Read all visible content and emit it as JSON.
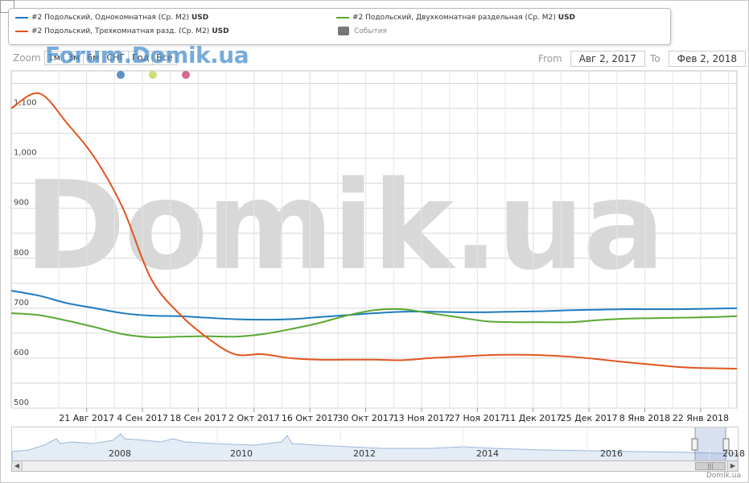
{
  "legend": {
    "items": [
      {
        "label": "#2 Подольский, Однокомнатная (Ср. М2)",
        "unit": "USD",
        "color": "#1f7bc1"
      },
      {
        "label": "#2 Подольский, Двухкомнатная раздельная (Ср. М2)",
        "unit": "USD",
        "color": "#59a832"
      },
      {
        "label": "#2 Подольский, Трехкомнатная разд. (Ср. М2)",
        "unit": "USD",
        "color": "#e0561f"
      }
    ],
    "events_label": "События"
  },
  "zoom": {
    "label": "Zoom",
    "buttons": [
      "1м",
      "3м",
      "6м",
      "СНГ",
      "Год",
      "Все"
    ]
  },
  "forum_watermark": "Forum.Domik.ua",
  "range": {
    "from_label": "From",
    "from_value": "Авг 2, 2017",
    "to_label": "To",
    "to_value": "Фев 2, 2018"
  },
  "event_dots": [
    {
      "color": "#5b8fc9"
    },
    {
      "color": "#cfe07a"
    },
    {
      "color": "#d36a8e"
    }
  ],
  "big_watermark": "Domik.ua",
  "chart_data": {
    "type": "line",
    "x": [
      "Авг 2, 2017",
      "Авг 9, 2017",
      "Авг 16, 2017",
      "Авг 23, 2017",
      "Авг 30, 2017",
      "Сен 6, 2017",
      "Сен 13, 2017",
      "Сен 20, 2017",
      "Сен 27, 2017",
      "Окт 4, 2017",
      "Окт 11, 2017",
      "Окт 18, 2017",
      "Окт 25, 2017",
      "Ноя 1, 2017",
      "Ноя 8, 2017",
      "Ноя 15, 2017",
      "Ноя 22, 2017",
      "Ноя 29, 2017",
      "Дек 6, 2017",
      "Дек 13, 2017",
      "Дек 20, 2017",
      "Дек 27, 2017",
      "Янв 3, 2018",
      "Янв 10, 2018",
      "Янв 17, 2018",
      "Янв 24, 2018",
      "Фев 2, 2018"
    ],
    "series": [
      {
        "name": "#2 Подольский, Однокомнатная (Ср. М2) USD",
        "color": "#1f7bc1",
        "values": [
          735,
          725,
          710,
          700,
          690,
          685,
          684,
          681,
          678,
          677,
          678,
          682,
          686,
          690,
          693,
          693,
          692,
          692,
          693,
          694,
          696,
          697,
          698,
          698,
          698,
          699,
          700
        ]
      },
      {
        "name": "#2 Подольский, Двухкомнатная раздельная (Ср. М2) USD",
        "color": "#59a832",
        "values": [
          690,
          686,
          675,
          662,
          648,
          642,
          643,
          644,
          643,
          648,
          658,
          670,
          685,
          696,
          698,
          690,
          682,
          674,
          672,
          672,
          672,
          676,
          679,
          680,
          681,
          682,
          684
        ]
      },
      {
        "name": "#2 Подольский, Трехкомнатная разд. (Ср. М2) USD",
        "color": "#e0561f",
        "values": [
          1100,
          1130,
          1070,
          1000,
          900,
          760,
          690,
          642,
          608,
          608,
          600,
          597,
          597,
          597,
          596,
          600,
          603,
          606,
          607,
          606,
          603,
          598,
          592,
          587,
          582,
          580,
          579
        ]
      }
    ],
    "x_tick_labels": [
      "21 Авг 2017",
      "4 Сен 2017",
      "18 Сен 2017",
      "2 Окт 2017",
      "16 Окт 2017",
      "30 Окт 2017",
      "13 Ноя 2017",
      "27 Ноя 2017",
      "11 Дек 2017",
      "25 Дек 2017",
      "8 Янв 2018",
      "22 Янв 2018"
    ],
    "y_tick_labels": [
      "500",
      "600",
      "700",
      "800",
      "900",
      "1,000",
      "1,100"
    ],
    "ylim": [
      500,
      1175
    ],
    "grid": true,
    "legend_position": "top"
  },
  "navigator": {
    "year_labels": [
      "2008",
      "2010",
      "2012",
      "2014",
      "2016",
      "2018"
    ]
  },
  "credit": "Domik.ua"
}
